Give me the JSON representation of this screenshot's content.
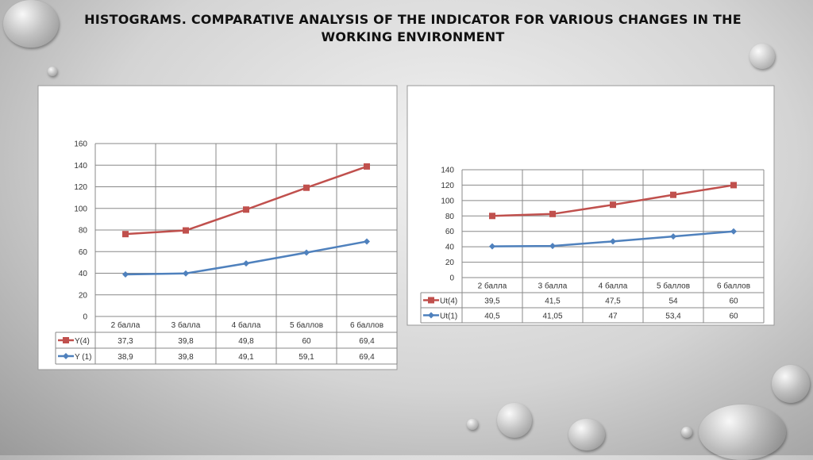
{
  "title": "HISTOGRAMS. COMPARATIVE ANALYSIS OF THE INDICATOR FOR VARIOUS CHANGES IN THE WORKING ENVIRONMENT",
  "chart_data": [
    {
      "type": "line",
      "stacked": true,
      "categories": [
        "2 балла",
        "3 балла",
        "4 балла",
        "5 баллов",
        "6 баллов"
      ],
      "series": [
        {
          "name": "Y(4)",
          "values": [
            37.3,
            39.8,
            49.8,
            60,
            69.4
          ],
          "color": "#c0504d",
          "marker": "square"
        },
        {
          "name": "Y (1)",
          "values": [
            38.9,
            39.8,
            49.1,
            59.1,
            69.4
          ],
          "color": "#4f81bd",
          "marker": "diamond"
        }
      ],
      "yticks": [
        0,
        20,
        40,
        60,
        80,
        100,
        120,
        140,
        160
      ],
      "ylim": [
        0,
        160
      ],
      "grid": true,
      "legend": "data-table"
    },
    {
      "type": "line",
      "stacked": true,
      "categories": [
        "2 балла",
        "3 балла",
        "4 балла",
        "5 баллов",
        "6 баллов"
      ],
      "series": [
        {
          "name": "Ut(4)",
          "values": [
            39.5,
            41.5,
            47.5,
            54,
            60
          ],
          "color": "#c0504d",
          "marker": "square"
        },
        {
          "name": "Ut(1)",
          "values": [
            40.5,
            41.05,
            47,
            53.4,
            60
          ],
          "color": "#4f81bd",
          "marker": "diamond"
        }
      ],
      "yticks": [
        0,
        20,
        40,
        60,
        80,
        100,
        120,
        140
      ],
      "ylim": [
        0,
        140
      ],
      "grid": true,
      "legend": "data-table"
    }
  ]
}
